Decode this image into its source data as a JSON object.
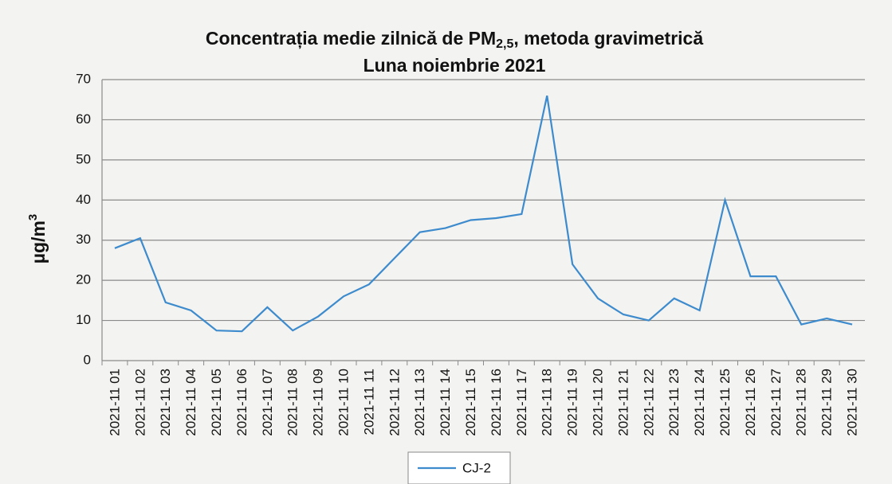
{
  "chart_data": {
    "type": "line",
    "title": {
      "main": "Concentrația medie zilnică de PM",
      "sub": "2,5",
      "rest": ",  metoda gravimetrică",
      "line2": "Luna noiembrie 2021"
    },
    "y_label": {
      "main": "µg/m",
      "sup": "3"
    },
    "categories": [
      "2021-11 01",
      "2021-11 02",
      "2021-11 03",
      "2021-11 04",
      "2021-11 05",
      "2021-11 06",
      "2021-11 07",
      "2021-11 08",
      "2021-11 09",
      "2021-11 10",
      "2021-11 11",
      "2021-11 12",
      "2021-11 13",
      "2021-11 14",
      "2021-11 15",
      "2021-11 16",
      "2021-11 17",
      "2021-11 18",
      "2021-11 19",
      "2021-11 20",
      "2021-11 21",
      "2021-11 22",
      "2021-11 23",
      "2021-11 24",
      "2021-11 25",
      "2021-11 26",
      "2021-11 27",
      "2021-11 28",
      "2021-11 29",
      "2021-11 30"
    ],
    "series": [
      {
        "name": "CJ-2",
        "color": "#3d8bcd",
        "values": [
          28,
          30.5,
          14.5,
          12.5,
          7.5,
          7.3,
          13.3,
          7.5,
          11,
          16,
          19,
          25.5,
          32,
          33,
          35,
          35.5,
          36.5,
          66,
          24,
          15.5,
          11.5,
          10,
          15.5,
          12.5,
          40,
          21,
          21,
          9,
          10.5,
          9
        ]
      }
    ],
    "ylim": [
      0,
      70
    ],
    "yticks": [
      0,
      10,
      20,
      30,
      40,
      50,
      60,
      70
    ],
    "grid": true,
    "legend": "bottom"
  }
}
